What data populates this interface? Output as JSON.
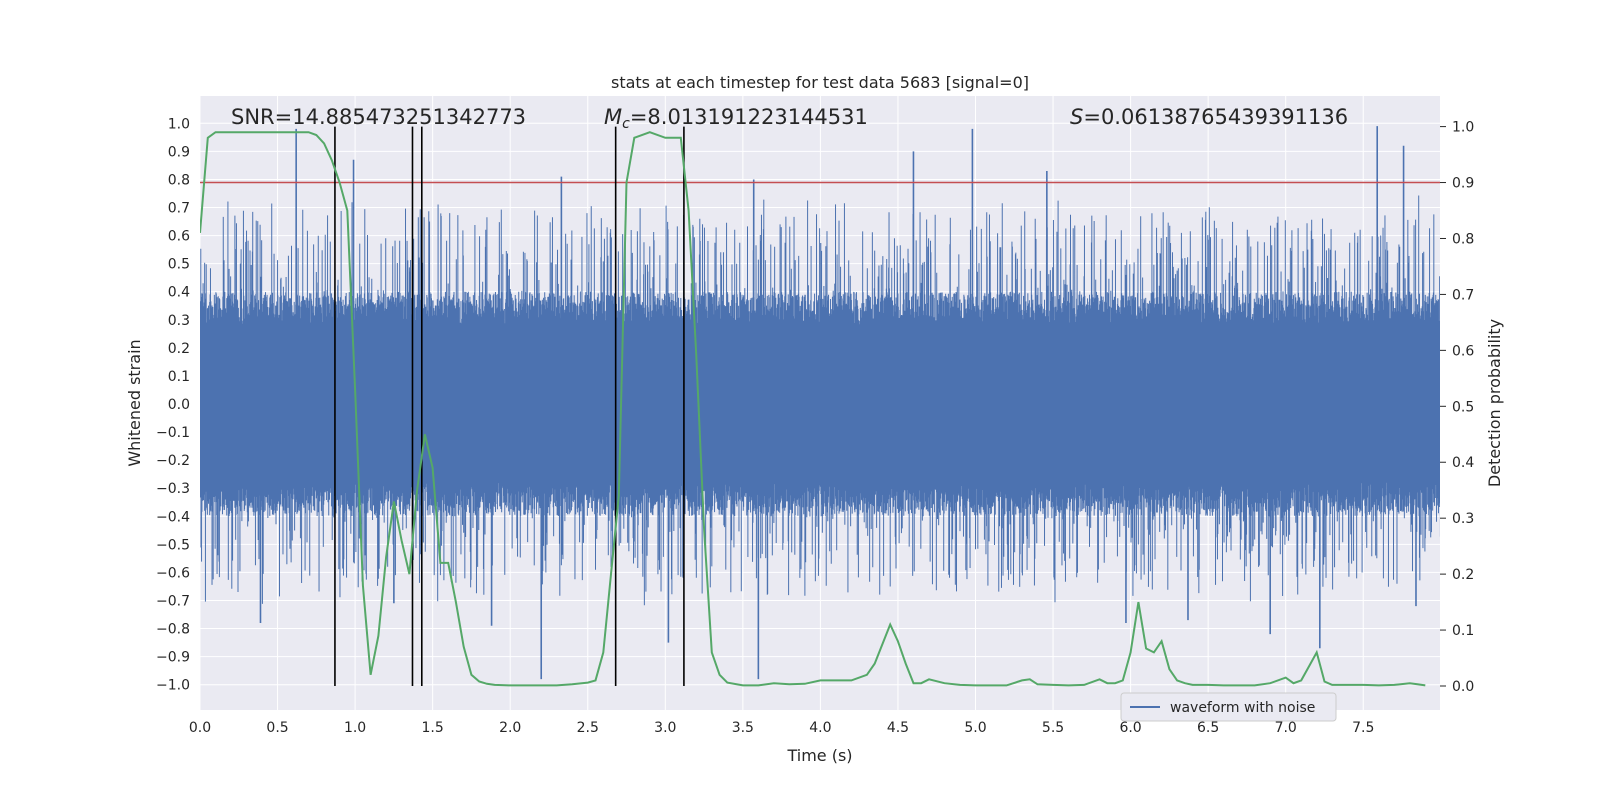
{
  "chart_data": {
    "type": "line",
    "title": "stats at each timestep for test data 5683 [signal=0]",
    "xlabel": "Time (s)",
    "ylabel": "Whitened strain",
    "y2label": "Detection probability",
    "xlim": [
      0.0,
      8.0
    ],
    "ylim": [
      -1.1,
      1.1
    ],
    "y2lim": [
      -0.05,
      1.05
    ],
    "grid": true,
    "xticks": [
      "0.0",
      "0.5",
      "1.0",
      "1.5",
      "2.0",
      "2.5",
      "3.0",
      "3.5",
      "4.0",
      "4.5",
      "5.0",
      "5.5",
      "6.0",
      "6.5",
      "7.0",
      "7.5"
    ],
    "yticks": [
      "1.0",
      "0.9",
      "0.8",
      "0.7",
      "0.6",
      "0.5",
      "0.4",
      "0.3",
      "0.2",
      "0.1",
      "0.0",
      "-0.1",
      "-0.2",
      "-0.3",
      "-0.4",
      "-0.5",
      "-0.6",
      "-0.7",
      "-0.8",
      "-0.9",
      "-1.0"
    ],
    "y2ticks": [
      "1.0",
      "0.9",
      "0.8",
      "0.7",
      "0.6",
      "0.5",
      "0.4",
      "0.3",
      "0.2",
      "0.1",
      "0.0"
    ],
    "annotations": {
      "snr": "SNR=14.885473251342773",
      "mc_symbol": "M",
      "mc_sub": "c",
      "mc_value": "=8.013191223144531",
      "s_symbol": "S",
      "s_value": "=0.06138765439391136"
    },
    "legend": {
      "label": "waveform with noise",
      "placement": "lower-right"
    },
    "threshold": {
      "value": 0.9,
      "axis": "right",
      "color": "#c44e52"
    },
    "vlines": [
      0.87,
      1.37,
      1.43,
      2.68,
      3.12
    ],
    "colors": {
      "waveform": "#4c72b0",
      "probability": "#55a868",
      "background": "#eaeaf2",
      "grid": "#ffffff",
      "vline": "#000000"
    },
    "series": [
      {
        "name": "waveform with noise",
        "axis": "left",
        "kind": "dense-noise",
        "envelope_abs": 0.4,
        "peaks": [
          {
            "x": 0.39,
            "y": -0.78
          },
          {
            "x": 0.62,
            "y": 0.98
          },
          {
            "x": 0.99,
            "y": 0.87
          },
          {
            "x": 1.25,
            "y": -0.71
          },
          {
            "x": 1.88,
            "y": -0.79
          },
          {
            "x": 2.2,
            "y": -0.98
          },
          {
            "x": 2.33,
            "y": 0.81
          },
          {
            "x": 3.02,
            "y": -0.85
          },
          {
            "x": 3.6,
            "y": -0.98
          },
          {
            "x": 3.57,
            "y": 0.8
          },
          {
            "x": 4.6,
            "y": 0.9
          },
          {
            "x": 4.98,
            "y": 0.98
          },
          {
            "x": 5.46,
            "y": 0.83
          },
          {
            "x": 5.97,
            "y": -0.78
          },
          {
            "x": 6.37,
            "y": -0.77
          },
          {
            "x": 6.9,
            "y": -0.82
          },
          {
            "x": 7.22,
            "y": -0.87
          },
          {
            "x": 7.59,
            "y": 0.99
          },
          {
            "x": 7.76,
            "y": 0.92
          },
          {
            "x": 7.84,
            "y": -0.72
          }
        ]
      },
      {
        "name": "",
        "axis": "right",
        "x": [
          0.0,
          0.05,
          0.1,
          0.3,
          0.5,
          0.7,
          0.75,
          0.8,
          0.85,
          0.9,
          0.95,
          1.0,
          1.05,
          1.1,
          1.15,
          1.2,
          1.25,
          1.3,
          1.35,
          1.4,
          1.45,
          1.5,
          1.55,
          1.6,
          1.65,
          1.7,
          1.75,
          1.8,
          1.85,
          1.9,
          2.0,
          2.1,
          2.2,
          2.3,
          2.4,
          2.5,
          2.55,
          2.6,
          2.65,
          2.7,
          2.75,
          2.8,
          2.9,
          3.0,
          3.05,
          3.1,
          3.15,
          3.2,
          3.25,
          3.3,
          3.35,
          3.4,
          3.5,
          3.6,
          3.7,
          3.8,
          3.9,
          4.0,
          4.1,
          4.2,
          4.3,
          4.35,
          4.45,
          4.5,
          4.55,
          4.6,
          4.65,
          4.7,
          4.8,
          4.9,
          5.0,
          5.1,
          5.2,
          5.3,
          5.35,
          5.4,
          5.5,
          5.6,
          5.7,
          5.8,
          5.85,
          5.9,
          5.95,
          6.0,
          6.05,
          6.1,
          6.15,
          6.2,
          6.25,
          6.3,
          6.35,
          6.4,
          6.5,
          6.6,
          6.8,
          6.9,
          7.0,
          7.05,
          7.1,
          7.15,
          7.2,
          7.25,
          7.3,
          7.4,
          7.5,
          7.6,
          7.7,
          7.8,
          7.85,
          7.9
        ],
        "values": [
          0.81,
          0.98,
          0.99,
          0.99,
          0.99,
          0.99,
          0.985,
          0.97,
          0.94,
          0.9,
          0.85,
          0.53,
          0.18,
          0.02,
          0.09,
          0.23,
          0.33,
          0.26,
          0.2,
          0.35,
          0.45,
          0.39,
          0.22,
          0.22,
          0.15,
          0.07,
          0.02,
          0.008,
          0.004,
          0.002,
          0.001,
          0.001,
          0.001,
          0.001,
          0.003,
          0.006,
          0.01,
          0.06,
          0.2,
          0.34,
          0.9,
          0.98,
          0.99,
          0.98,
          0.98,
          0.98,
          0.85,
          0.59,
          0.28,
          0.06,
          0.02,
          0.006,
          0.001,
          0.001,
          0.005,
          0.003,
          0.004,
          0.01,
          0.01,
          0.01,
          0.02,
          0.04,
          0.11,
          0.08,
          0.04,
          0.005,
          0.005,
          0.012,
          0.005,
          0.002,
          0.001,
          0.001,
          0.001,
          0.01,
          0.012,
          0.003,
          0.002,
          0.001,
          0.002,
          0.012,
          0.005,
          0.005,
          0.01,
          0.06,
          0.15,
          0.067,
          0.06,
          0.08,
          0.03,
          0.01,
          0.005,
          0.002,
          0.002,
          0.001,
          0.001,
          0.005,
          0.015,
          0.005,
          0.01,
          0.035,
          0.06,
          0.008,
          0.002,
          0.002,
          0.002,
          0.001,
          0.002,
          0.005,
          0.003,
          0.001
        ]
      }
    ]
  }
}
